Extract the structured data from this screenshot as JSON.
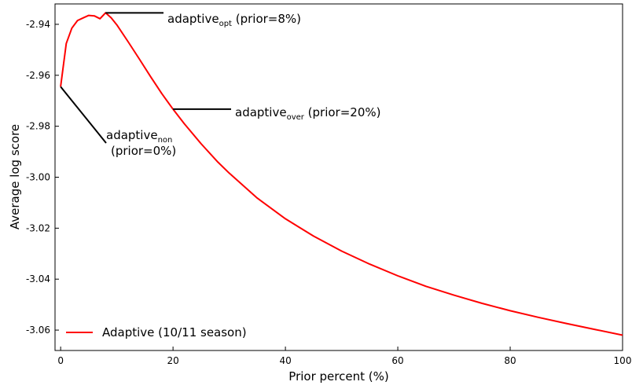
{
  "chart_data": {
    "type": "line",
    "xlabel": "Prior percent (%)",
    "ylabel": "Average log score",
    "xlim": [
      -1,
      100
    ],
    "ylim": [
      -3.068,
      -2.932
    ],
    "xticks": [
      "0",
      "20",
      "40",
      "60",
      "80",
      "100"
    ],
    "yticks": [
      "-2.94",
      "-2.96",
      "-2.98",
      "-3.00",
      "-3.02",
      "-3.04",
      "-3.06"
    ],
    "legend_position": "lower-left",
    "grid": false,
    "series": [
      {
        "name": "Adaptive (10/11 season)",
        "color": "#ff0000",
        "points": [
          [
            0,
            -2.9645
          ],
          [
            1,
            -2.9475
          ],
          [
            2,
            -2.9415
          ],
          [
            3,
            -2.9385
          ],
          [
            4,
            -2.9375
          ],
          [
            5,
            -2.9365
          ],
          [
            6,
            -2.9367
          ],
          [
            7,
            -2.9378
          ],
          [
            8,
            -2.9355
          ],
          [
            9,
            -2.9375
          ],
          [
            10,
            -2.9402
          ],
          [
            12,
            -2.9468
          ],
          [
            14,
            -2.9536
          ],
          [
            16,
            -2.9605
          ],
          [
            18,
            -2.9672
          ],
          [
            20,
            -2.9733
          ],
          [
            22,
            -2.979
          ],
          [
            25,
            -2.9869
          ],
          [
            28,
            -2.9941
          ],
          [
            30,
            -2.9984
          ],
          [
            35,
            -3.0082
          ],
          [
            40,
            -3.0163
          ],
          [
            45,
            -3.0231
          ],
          [
            50,
            -3.029
          ],
          [
            55,
            -3.0341
          ],
          [
            60,
            -3.0387
          ],
          [
            65,
            -3.0428
          ],
          [
            70,
            -3.0463
          ],
          [
            75,
            -3.0495
          ],
          [
            80,
            -3.0524
          ],
          [
            85,
            -3.055
          ],
          [
            90,
            -3.0574
          ],
          [
            95,
            -3.0597
          ],
          [
            100,
            -3.062
          ]
        ]
      }
    ],
    "annotations": [
      {
        "base": "adaptive",
        "sub": "opt",
        "suffix": " (prior=8%)",
        "point": [
          8,
          -2.9355
        ]
      },
      {
        "base": "adaptive",
        "sub": "over",
        "suffix": " (prior=20%)",
        "point": [
          20,
          -2.9733
        ]
      },
      {
        "base": "adaptive",
        "sub": "non",
        "suffix": "(prior=0%)",
        "point": [
          0,
          -2.9645
        ]
      }
    ]
  }
}
